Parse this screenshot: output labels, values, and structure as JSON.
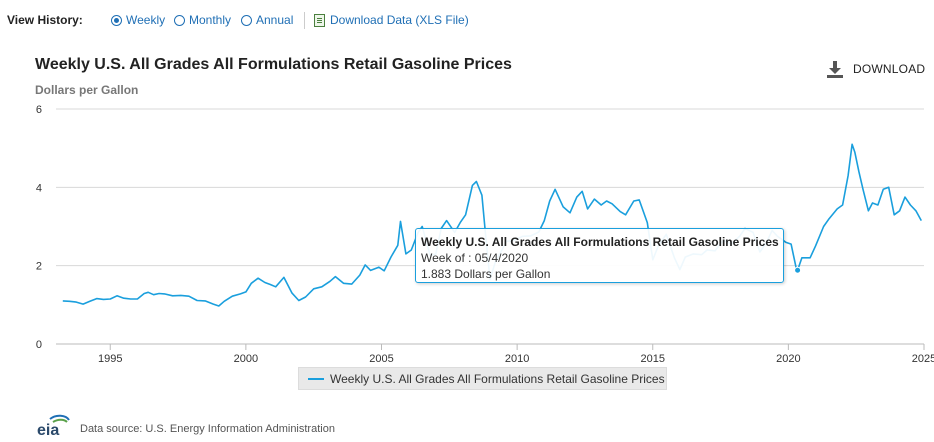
{
  "toolbar": {
    "view_history_label": "View History:",
    "options": [
      "Weekly",
      "Monthly",
      "Annual"
    ],
    "selected": "Weekly",
    "download_data_label": "Download Data (XLS File)"
  },
  "header": {
    "title": "Weekly U.S. All Grades All Formulations Retail Gasoline Prices",
    "subtitle": "Dollars per Gallon",
    "download_label": "DOWNLOAD"
  },
  "tooltip": {
    "title": "Weekly U.S. All Grades All Formulations Retail Gasoline Prices",
    "week": "Week of : 05/4/2020",
    "value": "1.883 Dollars per Gallon"
  },
  "footer": {
    "logo_text": "eia",
    "source": "Data source: U.S. Energy Information Administration"
  },
  "colors": {
    "series": "#1a9fdd",
    "link": "#1f6fb5",
    "grid": "#d8d8d8"
  },
  "chart_data": {
    "type": "line",
    "title": "Weekly U.S. All Grades All Formulations Retail Gasoline Prices",
    "ylabel": "Dollars per Gallon",
    "xlim": [
      1993.0,
      2025.0
    ],
    "ylim": [
      0,
      6
    ],
    "x_ticks": [
      "1995",
      "2000",
      "2005",
      "2010",
      "2015",
      "2020",
      "2025"
    ],
    "y_ticks": [
      "0",
      "2",
      "4",
      "6"
    ],
    "grid": "horizontal",
    "legend_position": "bottom-center",
    "highlighted_point": [
      2020.34,
      1.883
    ],
    "series": [
      {
        "name": "Weekly U.S. All Grades All Formulations Retail Gasoline Prices",
        "x": [
          1993.25,
          1993.5,
          1993.75,
          1994.0,
          1994.25,
          1994.5,
          1994.75,
          1995.0,
          1995.25,
          1995.5,
          1995.75,
          1996.0,
          1996.25,
          1996.4,
          1996.6,
          1996.8,
          1997.0,
          1997.3,
          1997.6,
          1997.9,
          1998.2,
          1998.5,
          1998.8,
          1999.0,
          1999.2,
          1999.5,
          1999.8,
          2000.0,
          2000.2,
          2000.45,
          2000.7,
          2000.9,
          2001.1,
          2001.4,
          2001.7,
          2001.95,
          2002.2,
          2002.5,
          2002.8,
          2003.1,
          2003.3,
          2003.6,
          2003.9,
          2004.2,
          2004.4,
          2004.6,
          2004.9,
          2005.1,
          2005.35,
          2005.6,
          2005.7,
          2005.9,
          2006.1,
          2006.35,
          2006.5,
          2006.8,
          2007.0,
          2007.2,
          2007.4,
          2007.7,
          2007.9,
          2008.1,
          2008.35,
          2008.5,
          2008.7,
          2008.85,
          2009.0,
          2009.2,
          2009.4,
          2009.6,
          2009.9,
          2010.2,
          2010.5,
          2010.8,
          2011.0,
          2011.2,
          2011.4,
          2011.7,
          2011.95,
          2012.2,
          2012.4,
          2012.6,
          2012.85,
          2013.1,
          2013.3,
          2013.5,
          2013.8,
          2014.0,
          2014.3,
          2014.5,
          2014.8,
          2015.0,
          2015.2,
          2015.5,
          2015.8,
          2016.0,
          2016.2,
          2016.5,
          2016.8,
          2017.0,
          2017.3,
          2017.6,
          2017.9,
          2018.2,
          2018.4,
          2018.7,
          2018.95,
          2019.2,
          2019.4,
          2019.6,
          2019.9,
          2020.1,
          2020.3,
          2020.34,
          2020.5,
          2020.8,
          2021.0,
          2021.3,
          2021.5,
          2021.8,
          2022.0,
          2022.2,
          2022.35,
          2022.45,
          2022.6,
          2022.75,
          2022.95,
          2023.1,
          2023.3,
          2023.5,
          2023.7,
          2023.9,
          2024.1,
          2024.3,
          2024.5,
          2024.7,
          2024.9
        ],
        "y": [
          1.1,
          1.09,
          1.07,
          1.02,
          1.09,
          1.16,
          1.14,
          1.15,
          1.23,
          1.17,
          1.15,
          1.15,
          1.29,
          1.32,
          1.26,
          1.29,
          1.28,
          1.23,
          1.24,
          1.22,
          1.11,
          1.1,
          1.02,
          0.97,
          1.09,
          1.22,
          1.28,
          1.33,
          1.55,
          1.68,
          1.57,
          1.52,
          1.46,
          1.7,
          1.3,
          1.11,
          1.2,
          1.41,
          1.46,
          1.6,
          1.72,
          1.55,
          1.53,
          1.76,
          2.02,
          1.88,
          1.96,
          1.87,
          2.22,
          2.52,
          3.13,
          2.3,
          2.4,
          2.85,
          3.0,
          2.25,
          2.3,
          2.95,
          3.15,
          2.85,
          3.1,
          3.3,
          4.05,
          4.15,
          3.8,
          2.7,
          1.65,
          2.1,
          2.35,
          2.62,
          2.65,
          2.75,
          2.76,
          2.86,
          3.15,
          3.65,
          3.95,
          3.5,
          3.35,
          3.75,
          3.9,
          3.45,
          3.7,
          3.55,
          3.65,
          3.58,
          3.38,
          3.3,
          3.65,
          3.68,
          3.1,
          2.15,
          2.5,
          2.8,
          2.2,
          1.9,
          2.22,
          2.3,
          2.28,
          2.4,
          2.38,
          2.65,
          2.55,
          2.75,
          2.95,
          2.85,
          2.35,
          2.6,
          2.9,
          2.75,
          2.6,
          2.55,
          1.9,
          1.883,
          2.2,
          2.2,
          2.5,
          3.0,
          3.2,
          3.45,
          3.55,
          4.3,
          5.1,
          4.9,
          4.4,
          3.95,
          3.4,
          3.6,
          3.55,
          3.95,
          4.0,
          3.3,
          3.4,
          3.75,
          3.55,
          3.4,
          3.15
        ]
      }
    ]
  }
}
